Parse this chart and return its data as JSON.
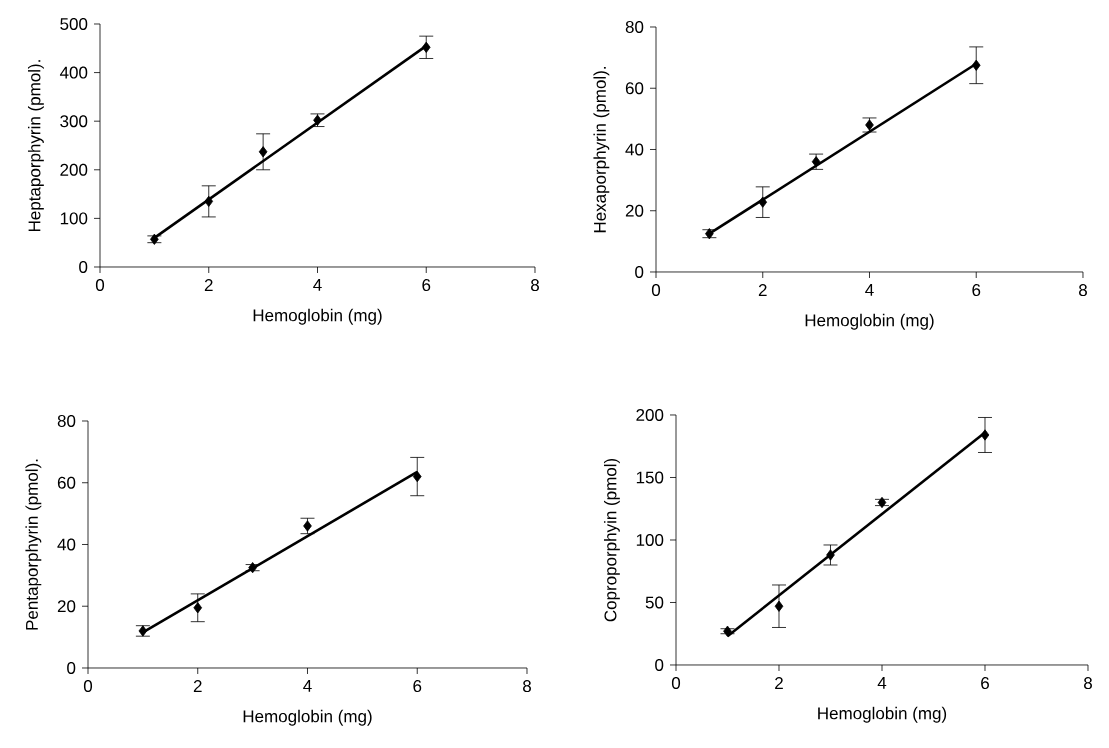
{
  "chart_data": [
    {
      "type": "scatter",
      "xlabel": "Hemoglobin (mg)",
      "ylabel": "Heptaporphyrin (pmol).",
      "xlim": [
        0,
        8
      ],
      "xticks": [
        0,
        2,
        4,
        6,
        8
      ],
      "ylim": [
        0,
        500
      ],
      "yticks": [
        0,
        100,
        200,
        300,
        400,
        500
      ],
      "series": [
        {
          "marker": "diamond",
          "color": "#000000",
          "x": [
            1,
            2,
            3,
            4,
            6
          ],
          "values": [
            57,
            135,
            237,
            302,
            452
          ],
          "errors": [
            7,
            32,
            37,
            13,
            23
          ]
        },
        {
          "type": "line",
          "marker": "none",
          "color": "#000000",
          "x": [
            1,
            6
          ],
          "values": [
            60,
            455
          ]
        }
      ]
    },
    {
      "type": "scatter",
      "xlabel": "Hemoglobin (mg)",
      "ylabel": "Hexaporphyrin (pmol).",
      "xlim": [
        0,
        8
      ],
      "xticks": [
        0,
        2,
        4,
        6,
        8
      ],
      "ylim": [
        0,
        80
      ],
      "yticks": [
        0,
        20,
        40,
        60,
        80
      ],
      "series": [
        {
          "marker": "diamond",
          "color": "#000000",
          "x": [
            1,
            2,
            3,
            4,
            6
          ],
          "values": [
            12.5,
            22.8,
            36,
            48,
            67.5
          ],
          "errors": [
            1.3,
            5,
            2.5,
            2.3,
            6
          ]
        },
        {
          "type": "line",
          "marker": "none",
          "color": "#000000",
          "x": [
            1,
            6
          ],
          "values": [
            12.5,
            68
          ]
        }
      ]
    },
    {
      "type": "scatter",
      "xlabel": "Hemoglobin (mg)",
      "ylabel": "Pentaporphyrin (pmol).",
      "xlim": [
        0,
        8
      ],
      "xticks": [
        0,
        2,
        4,
        6,
        8
      ],
      "ylim": [
        0,
        80
      ],
      "yticks": [
        0,
        20,
        40,
        60,
        80
      ],
      "series": [
        {
          "marker": "diamond",
          "color": "#000000",
          "x": [
            1,
            2,
            3,
            4,
            6
          ],
          "values": [
            12,
            19.5,
            32.5,
            46,
            62
          ],
          "errors": [
            1.7,
            4.5,
            1,
            2.5,
            6.2
          ]
        },
        {
          "type": "line",
          "marker": "none",
          "color": "#000000",
          "x": [
            1,
            6
          ],
          "values": [
            11.5,
            63.5
          ]
        }
      ]
    },
    {
      "type": "scatter",
      "xlabel": "Hemoglobin (mg)",
      "ylabel": "Coproporphyin (pmol)",
      "xlim": [
        0,
        8
      ],
      "xticks": [
        0,
        2,
        4,
        6,
        8
      ],
      "ylim": [
        0,
        200
      ],
      "yticks": [
        0,
        50,
        100,
        150,
        200
      ],
      "series": [
        {
          "marker": "diamond",
          "color": "#000000",
          "x": [
            1,
            2,
            3,
            4,
            6
          ],
          "values": [
            27,
            47,
            88,
            130,
            184
          ],
          "errors": [
            2,
            17,
            8,
            2.5,
            14
          ]
        },
        {
          "type": "line",
          "marker": "none",
          "color": "#000000",
          "x": [
            1,
            6
          ],
          "values": [
            23,
            186
          ]
        }
      ]
    }
  ]
}
